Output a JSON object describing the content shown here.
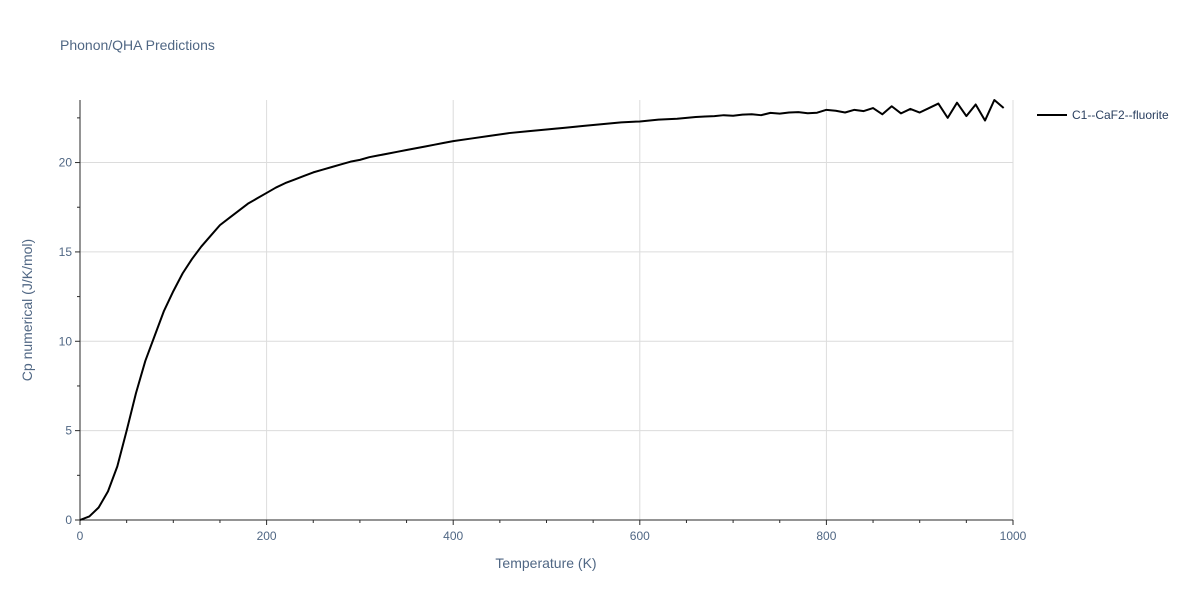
{
  "chart_data": {
    "type": "line",
    "title": "Phonon/QHA Predictions",
    "xlabel": "Temperature (K)",
    "ylabel": "Cp numerical (J/K/mol)",
    "xlim": [
      0,
      1000
    ],
    "ylim": [
      0,
      23.5
    ],
    "xticks": [
      0,
      200,
      400,
      600,
      800,
      1000
    ],
    "yticks": [
      0,
      5,
      10,
      15,
      20
    ],
    "grid": true,
    "legend": "top-right",
    "series": [
      {
        "name": "C1--CaF2--fluorite",
        "color": "#000000",
        "x": [
          0,
          10,
          20,
          30,
          40,
          50,
          60,
          70,
          80,
          90,
          100,
          110,
          120,
          130,
          140,
          150,
          160,
          170,
          180,
          190,
          200,
          210,
          220,
          230,
          240,
          250,
          260,
          270,
          280,
          290,
          300,
          310,
          320,
          330,
          340,
          350,
          360,
          370,
          380,
          390,
          400,
          420,
          440,
          460,
          480,
          500,
          520,
          540,
          560,
          580,
          600,
          620,
          640,
          650,
          660,
          670,
          680,
          690,
          700,
          710,
          720,
          730,
          740,
          750,
          760,
          770,
          780,
          790,
          800,
          810,
          820,
          830,
          840,
          850,
          860,
          870,
          880,
          890,
          900,
          910,
          920,
          930,
          940,
          950,
          960,
          970,
          980,
          990
        ],
        "y": [
          0.0,
          0.2,
          0.7,
          1.6,
          3.0,
          5.0,
          7.1,
          8.9,
          10.3,
          11.7,
          12.8,
          13.8,
          14.6,
          15.3,
          15.9,
          16.5,
          16.9,
          17.3,
          17.7,
          18.0,
          18.3,
          18.6,
          18.85,
          19.05,
          19.25,
          19.45,
          19.6,
          19.75,
          19.9,
          20.05,
          20.15,
          20.3,
          20.4,
          20.5,
          20.6,
          20.7,
          20.8,
          20.9,
          21.0,
          21.1,
          21.2,
          21.35,
          21.5,
          21.65,
          21.75,
          21.85,
          21.95,
          22.05,
          22.15,
          22.25,
          22.3,
          22.4,
          22.45,
          22.5,
          22.55,
          22.58,
          22.6,
          22.65,
          22.62,
          22.68,
          22.7,
          22.65,
          22.78,
          22.74,
          22.8,
          22.82,
          22.76,
          22.79,
          22.95,
          22.9,
          22.8,
          22.95,
          22.88,
          23.05,
          22.7,
          23.15,
          22.75,
          23.0,
          22.8,
          23.05,
          23.3,
          22.5,
          23.35,
          22.6,
          23.25,
          22.35,
          23.5,
          23.05
        ]
      }
    ]
  }
}
